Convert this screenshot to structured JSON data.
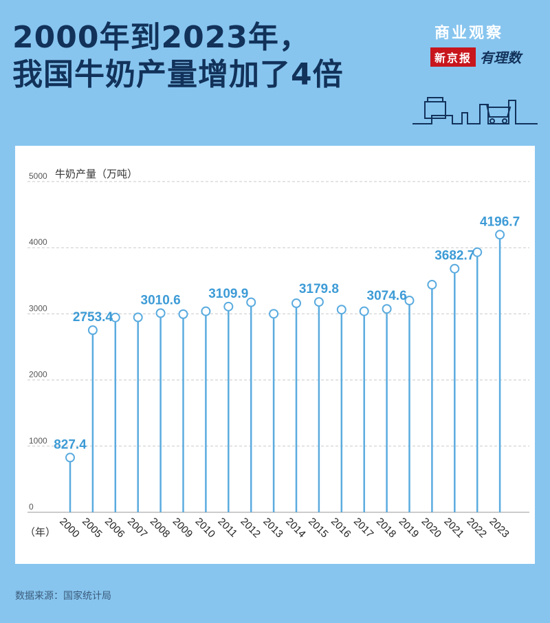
{
  "header": {
    "title_line1": "2000年到2023年，",
    "title_line2": "我国牛奶产量增加了4倍"
  },
  "brand": {
    "top": "商业观察",
    "red": "新京报",
    "script": "有理数"
  },
  "source": "数据来源：国家统计局",
  "colors": {
    "background": "#87c5ef",
    "title": "#12325a",
    "accent": "#5aabdf",
    "label": "#3d9bd6",
    "grid": "#c9c9c9"
  },
  "chart_data": {
    "type": "line",
    "ylabel": "牛奶产量（万吨）",
    "xlabel": "（年）",
    "ylim": [
      0,
      5000
    ],
    "yticks": [
      0,
      1000,
      2000,
      3000,
      4000,
      5000
    ],
    "grid": true,
    "categories": [
      "2000",
      "2005",
      "2006",
      "2007",
      "2008",
      "2009",
      "2010",
      "2011",
      "2012",
      "2013",
      "2014",
      "2015",
      "2016",
      "2017",
      "2018",
      "2019",
      "2020",
      "2021",
      "2022",
      "2023"
    ],
    "values": [
      827.4,
      2753.4,
      2944.6,
      2947.1,
      3010.6,
      2995.1,
      3038.9,
      3109.9,
      3174.9,
      3000.8,
      3159.9,
      3179.8,
      3064.0,
      3038.6,
      3074.6,
      3201.2,
      3440.1,
      3682.7,
      3931.6,
      4196.7
    ],
    "labels": [
      {
        "year": "2000",
        "text": "827.4"
      },
      {
        "year": "2005",
        "text": "2753.4"
      },
      {
        "year": "2008",
        "text": "3010.6"
      },
      {
        "year": "2011",
        "text": "3109.9"
      },
      {
        "year": "2015",
        "text": "3179.8"
      },
      {
        "year": "2018",
        "text": "3074.6"
      },
      {
        "year": "2021",
        "text": "3682.7"
      },
      {
        "year": "2023",
        "text": "4196.7"
      }
    ]
  }
}
